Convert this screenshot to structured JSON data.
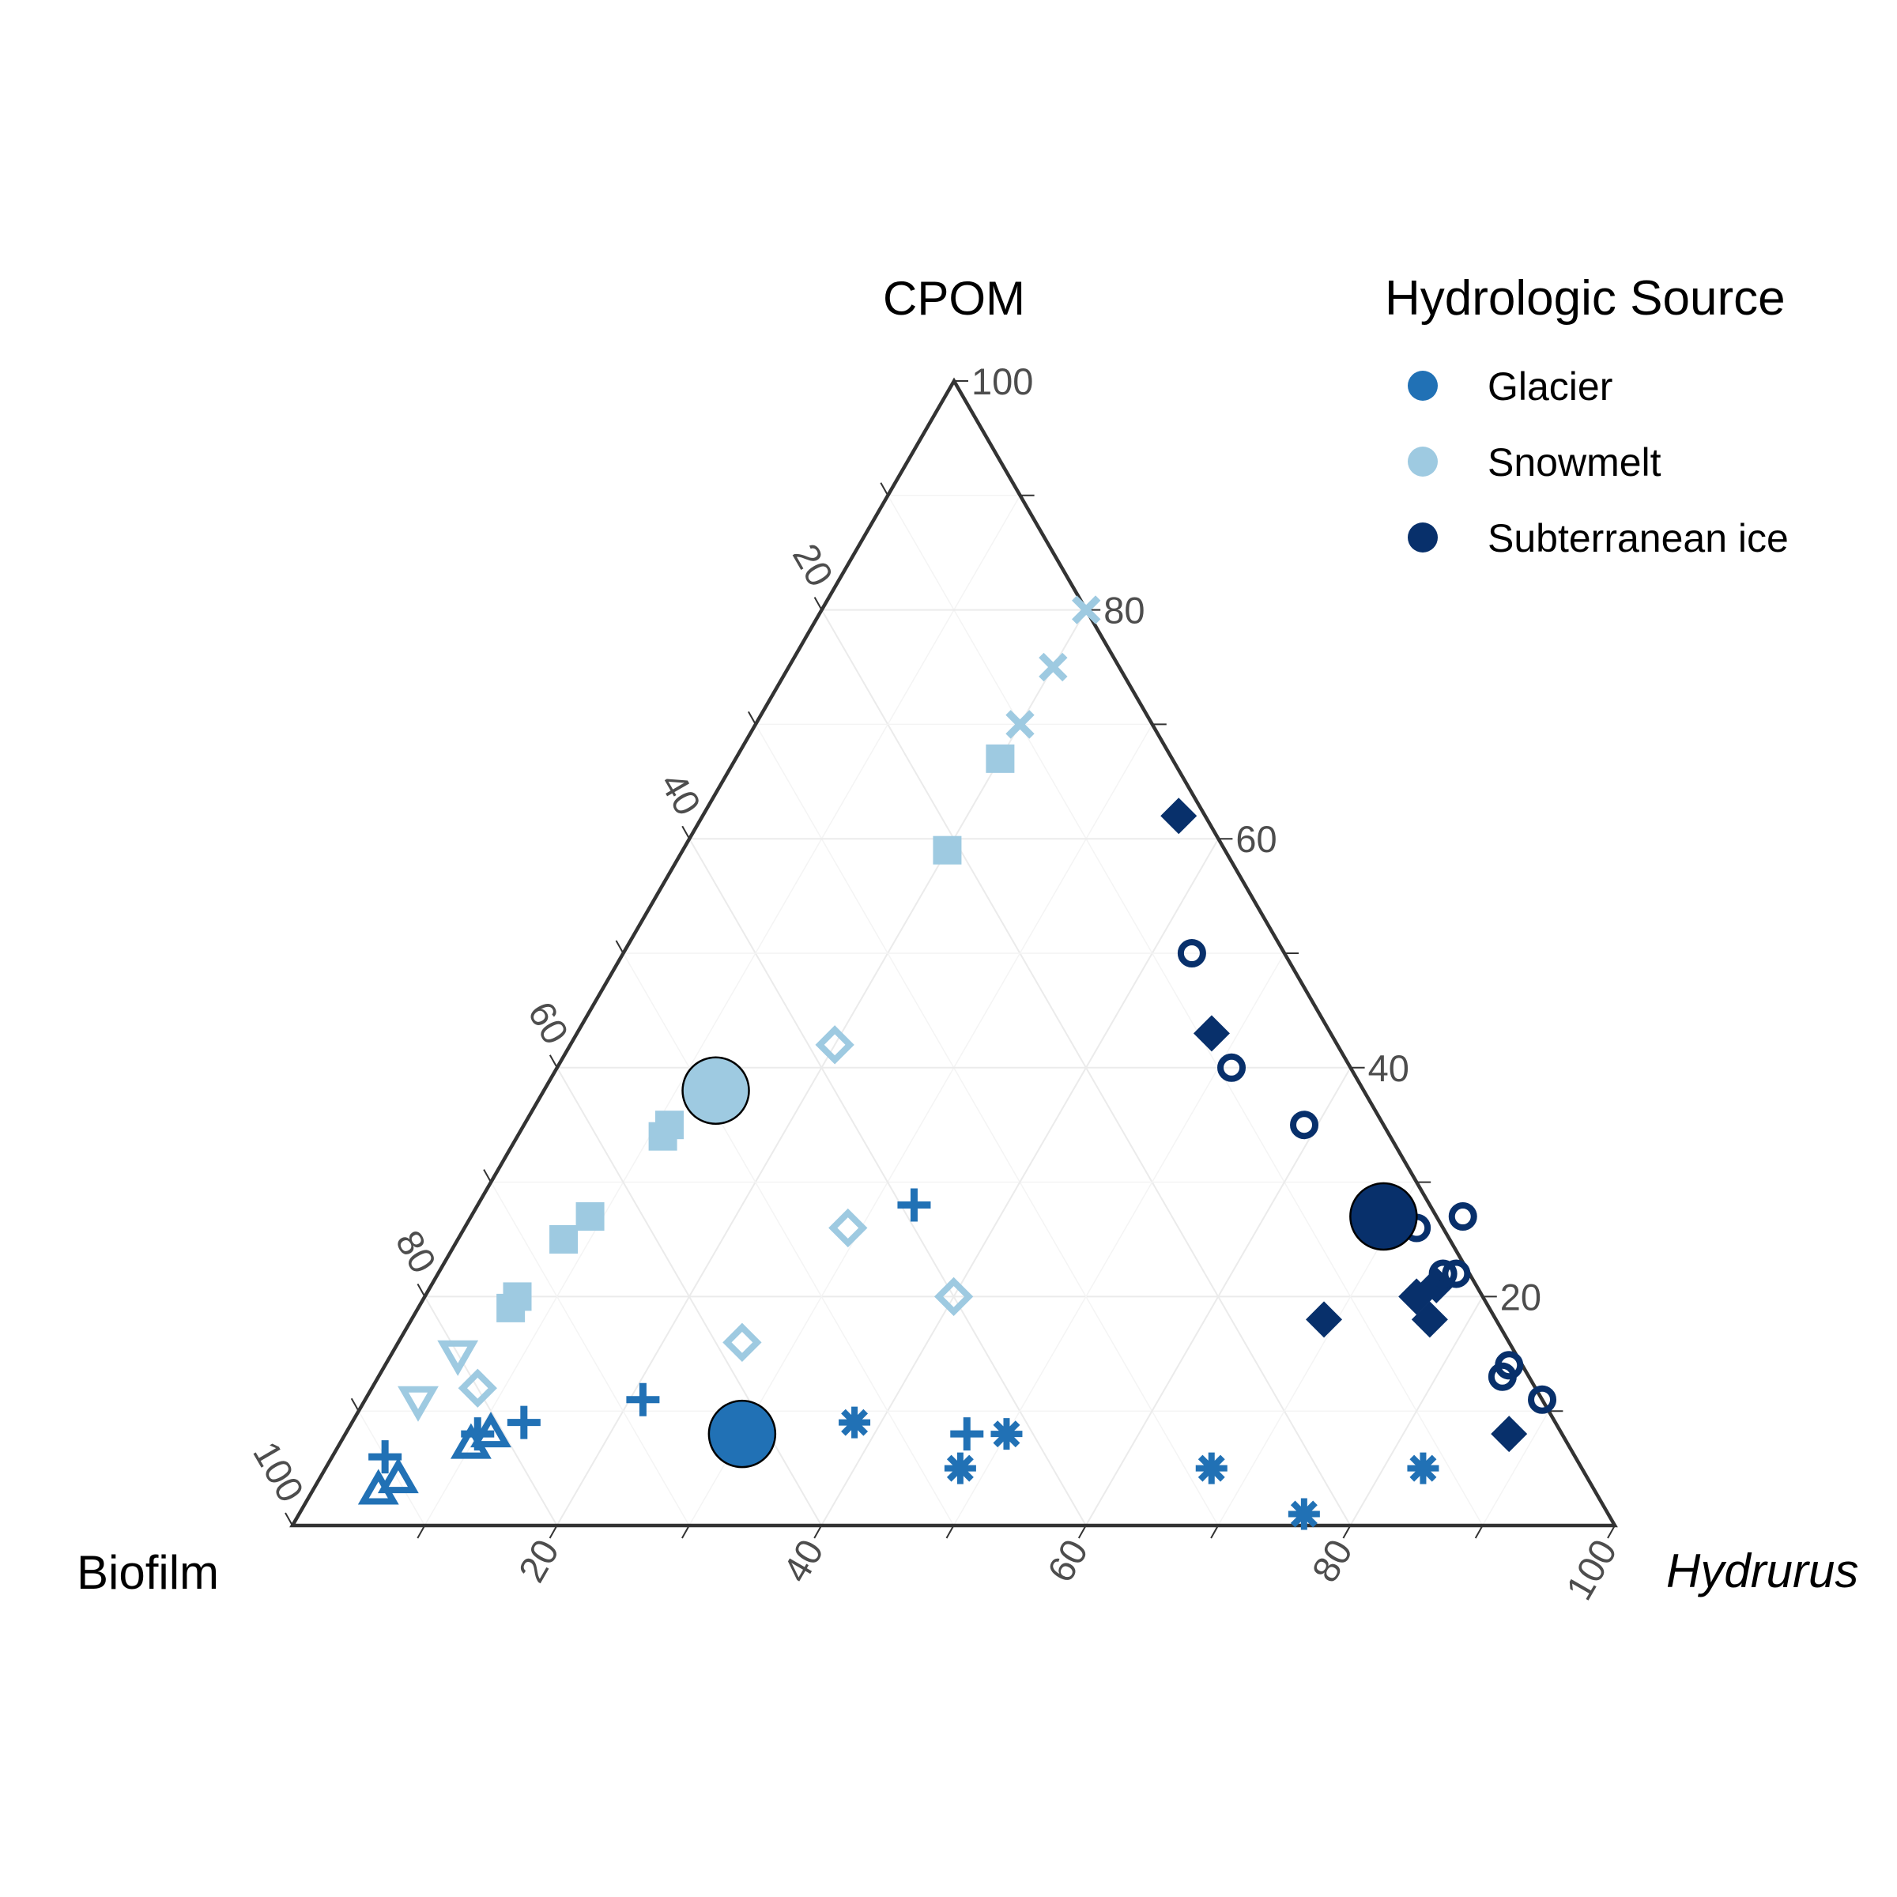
{
  "chart_data": {
    "type": "scatter",
    "subtype": "ternary",
    "title": "",
    "axes": {
      "top": {
        "label": "CPOM",
        "italic": false
      },
      "left": {
        "label": "Biofilm",
        "italic": false
      },
      "right": {
        "label": "Hydrurus",
        "italic": true
      }
    },
    "ticks": [
      "20",
      "40",
      "60",
      "80",
      "100"
    ],
    "grid_step": 10,
    "legend": {
      "title": "Hydrologic Source",
      "placement": "top-right",
      "entries": [
        {
          "label": "Glacier",
          "color": "#2171b5"
        },
        {
          "label": "Snowmelt",
          "color": "#9ecae1"
        },
        {
          "label": "Subterranean ice",
          "color": "#08306b"
        }
      ]
    },
    "series": [
      {
        "source": "Snowmelt",
        "color": "#9ecae1",
        "points": [
          {
            "hydrurus": 20,
            "cpom": 80,
            "shape": "x"
          },
          {
            "hydrurus": 20,
            "cpom": 75,
            "shape": "x"
          },
          {
            "hydrurus": 20,
            "cpom": 70,
            "shape": "x"
          },
          {
            "hydrurus": 20,
            "cpom": 67,
            "shape": "square"
          },
          {
            "hydrurus": 20,
            "cpom": 59,
            "shape": "square"
          },
          {
            "hydrurus": 11,
            "cpom": 35,
            "shape": "square"
          },
          {
            "hydrurus": 11,
            "cpom": 34,
            "shape": "square"
          },
          {
            "hydrurus": 9,
            "cpom": 27,
            "shape": "square"
          },
          {
            "hydrurus": 8,
            "cpom": 25,
            "shape": "square"
          },
          {
            "hydrurus": 7,
            "cpom": 20,
            "shape": "square"
          },
          {
            "hydrurus": 7,
            "cpom": 19,
            "shape": "square"
          },
          {
            "hydrurus": 5,
            "cpom": 15,
            "shape": "triangle-down"
          },
          {
            "hydrurus": 4,
            "cpom": 11,
            "shape": "triangle-down"
          },
          {
            "hydrurus": 8,
            "cpom": 12,
            "shape": "diamond-open"
          },
          {
            "hydrurus": 26,
            "cpom": 16,
            "shape": "diamond-open"
          },
          {
            "hydrurus": 29,
            "cpom": 26,
            "shape": "diamond-open"
          },
          {
            "hydrurus": 40,
            "cpom": 20,
            "shape": "diamond-open"
          },
          {
            "hydrurus": 20,
            "cpom": 42,
            "shape": "diamond-open"
          }
        ]
      },
      {
        "source": "Glacier",
        "color": "#2171b5",
        "points": [
          {
            "hydrurus": 4,
            "cpom": 6,
            "shape": "plus"
          },
          {
            "hydrurus": 10,
            "cpom": 8,
            "shape": "plus"
          },
          {
            "hydrurus": 13,
            "cpom": 9,
            "shape": "plus"
          },
          {
            "hydrurus": 21,
            "cpom": 11,
            "shape": "plus"
          },
          {
            "hydrurus": 33,
            "cpom": 28,
            "shape": "plus"
          },
          {
            "hydrurus": 47,
            "cpom": 8,
            "shape": "plus"
          },
          {
            "hydrurus": 5,
            "cpom": 3,
            "shape": "triangle"
          },
          {
            "hydrurus": 6,
            "cpom": 4,
            "shape": "triangle"
          },
          {
            "hydrurus": 10,
            "cpom": 7,
            "shape": "triangle"
          },
          {
            "hydrurus": 11,
            "cpom": 8,
            "shape": "triangle"
          },
          {
            "hydrurus": 38,
            "cpom": 9,
            "shape": "asterisk"
          },
          {
            "hydrurus": 48,
            "cpom": 5,
            "shape": "asterisk"
          },
          {
            "hydrurus": 50,
            "cpom": 8,
            "shape": "asterisk"
          },
          {
            "hydrurus": 67,
            "cpom": 5,
            "shape": "asterisk"
          },
          {
            "hydrurus": 76,
            "cpom": 1,
            "shape": "asterisk"
          },
          {
            "hydrurus": 83,
            "cpom": 5,
            "shape": "asterisk"
          }
        ]
      },
      {
        "source": "Subterranean ice",
        "color": "#08306b",
        "points": [
          {
            "hydrurus": 36,
            "cpom": 62,
            "shape": "diamond"
          },
          {
            "hydrurus": 48,
            "cpom": 43,
            "shape": "diamond"
          },
          {
            "hydrurus": 69,
            "cpom": 18,
            "shape": "diamond"
          },
          {
            "hydrurus": 75,
            "cpom": 20,
            "shape": "diamond"
          },
          {
            "hydrurus": 76,
            "cpom": 21,
            "shape": "diamond"
          },
          {
            "hydrurus": 77,
            "cpom": 18,
            "shape": "diamond"
          },
          {
            "hydrurus": 88,
            "cpom": 8,
            "shape": "diamond"
          },
          {
            "hydrurus": 43,
            "cpom": 50,
            "shape": "circle-open"
          },
          {
            "hydrurus": 51,
            "cpom": 40,
            "shape": "circle-open"
          },
          {
            "hydrurus": 59,
            "cpom": 35,
            "shape": "circle-open"
          },
          {
            "hydrurus": 72,
            "cpom": 26,
            "shape": "circle-open"
          },
          {
            "hydrurus": 75,
            "cpom": 27,
            "shape": "circle-open"
          },
          {
            "hydrurus": 76,
            "cpom": 22,
            "shape": "circle-open"
          },
          {
            "hydrurus": 77,
            "cpom": 22,
            "shape": "circle-open"
          },
          {
            "hydrurus": 85,
            "cpom": 14,
            "shape": "circle-open"
          },
          {
            "hydrurus": 85,
            "cpom": 13,
            "shape": "circle-open"
          },
          {
            "hydrurus": 89,
            "cpom": 11,
            "shape": "circle-open"
          }
        ]
      }
    ],
    "centroids": [
      {
        "source": "Snowmelt",
        "color": "#9ecae1",
        "hydrurus": 13,
        "cpom": 38
      },
      {
        "source": "Glacier",
        "color": "#2171b5",
        "hydrurus": 30,
        "cpom": 8
      },
      {
        "source": "Subterranean ice",
        "color": "#08306b",
        "hydrurus": 69,
        "cpom": 27
      }
    ]
  }
}
